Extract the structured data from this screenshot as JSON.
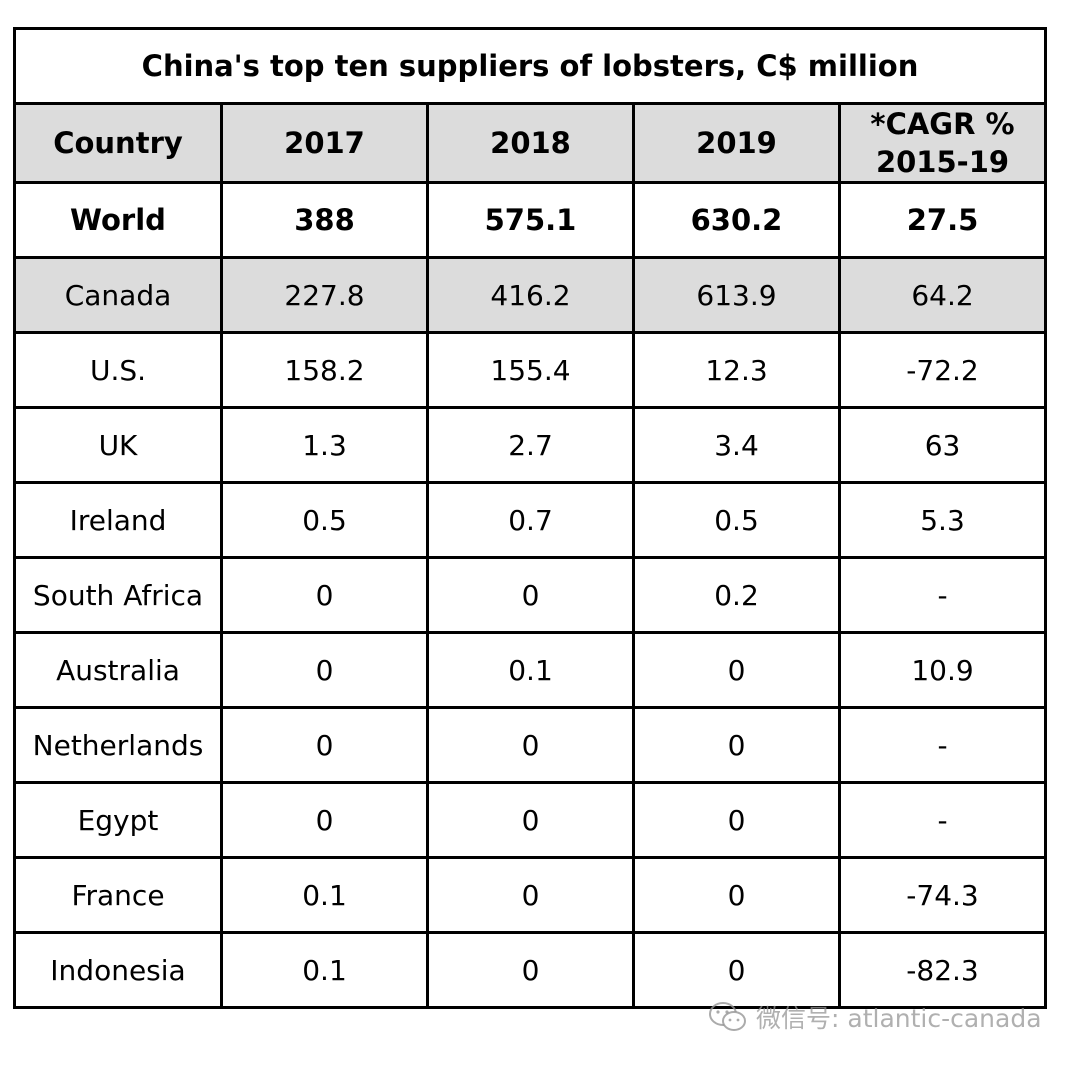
{
  "chart_data": {
    "type": "table",
    "title": "China's top ten suppliers of lobsters, C$ million",
    "columns": [
      "Country",
      "2017",
      "2018",
      "2019",
      "*CAGR % 2015-19"
    ],
    "rows": [
      {
        "country": "World",
        "y2017": "388",
        "y2018": "575.1",
        "y2019": "630.2",
        "cagr": "27.5"
      },
      {
        "country": "Canada",
        "y2017": "227.8",
        "y2018": "416.2",
        "y2019": "613.9",
        "cagr": "64.2"
      },
      {
        "country": "U.S.",
        "y2017": "158.2",
        "y2018": "155.4",
        "y2019": "12.3",
        "cagr": "-72.2"
      },
      {
        "country": "UK",
        "y2017": "1.3",
        "y2018": "2.7",
        "y2019": "3.4",
        "cagr": "63"
      },
      {
        "country": "Ireland",
        "y2017": "0.5",
        "y2018": "0.7",
        "y2019": "0.5",
        "cagr": "5.3"
      },
      {
        "country": "South Africa",
        "y2017": "0",
        "y2018": "0",
        "y2019": "0.2",
        "cagr": "-"
      },
      {
        "country": "Australia",
        "y2017": "0",
        "y2018": "0.1",
        "y2019": "0",
        "cagr": "10.9"
      },
      {
        "country": "Netherlands",
        "y2017": "0",
        "y2018": "0",
        "y2019": "0",
        "cagr": "-"
      },
      {
        "country": "Egypt",
        "y2017": "0",
        "y2018": "0",
        "y2019": "0",
        "cagr": "-"
      },
      {
        "country": "France",
        "y2017": "0.1",
        "y2018": "0",
        "y2019": "0",
        "cagr": "-74.3"
      },
      {
        "country": "Indonesia",
        "y2017": "0.1",
        "y2018": "0",
        "y2019": "0",
        "cagr": "-82.3"
      }
    ],
    "header_fill": "#dcdcdc",
    "shaded_rows": [
      1
    ]
  },
  "watermark": {
    "icon": "wechat-icon",
    "text": "微信号: atlantic-canada"
  }
}
